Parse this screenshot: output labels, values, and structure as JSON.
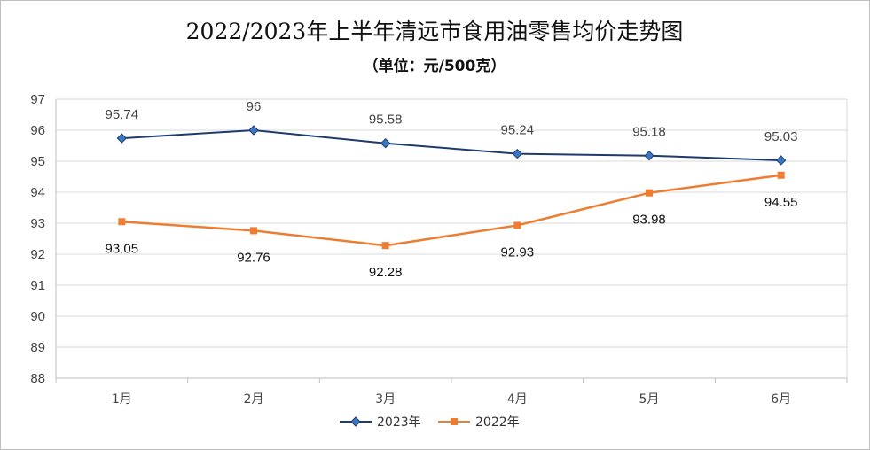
{
  "chart_data": {
    "type": "line",
    "title": "2022/2023年上半年清远市食用油零售均价走势图",
    "subtitle": "（单位：元/500克）",
    "categories": [
      "1月",
      "2月",
      "3月",
      "4月",
      "5月",
      "6月"
    ],
    "ylim": [
      88,
      97
    ],
    "yticks": [
      88,
      89,
      90,
      91,
      92,
      93,
      94,
      95,
      96,
      97
    ],
    "grid": true,
    "legend_position": "bottom",
    "series": [
      {
        "name": "2023年",
        "values": [
          95.74,
          96,
          95.58,
          95.24,
          95.18,
          95.03
        ],
        "labels": [
          "95.74",
          "96",
          "95.58",
          "95.24",
          "95.18",
          "95.03"
        ],
        "color": "#1f3a6e",
        "marker": "diamond",
        "marker_color": "#3b78c4",
        "label_position": "above"
      },
      {
        "name": "2022年",
        "values": [
          93.05,
          92.76,
          92.28,
          92.93,
          93.98,
          94.55
        ],
        "labels": [
          "93.05",
          "92.76",
          "92.28",
          "92.93",
          "93.98",
          "94.55"
        ],
        "color": "#ed7d31",
        "marker": "square",
        "marker_color": "#ed7d31",
        "label_position": "below"
      }
    ]
  }
}
